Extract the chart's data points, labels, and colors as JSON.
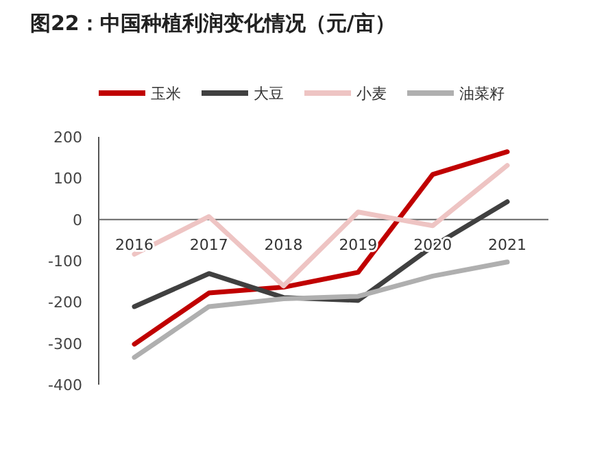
{
  "chart_data": {
    "type": "line",
    "title": "图22：中国种植利润变化情况（元/亩）",
    "categories": [
      "2016",
      "2017",
      "2018",
      "2019",
      "2020",
      "2021"
    ],
    "series": [
      {
        "name": "玉米",
        "color": "#c00000",
        "values": [
          -302,
          -178,
          -164,
          -128,
          109,
          164
        ]
      },
      {
        "name": "大豆",
        "color": "#404040",
        "values": [
          -211,
          -131,
          -189,
          -196,
          -65,
          43
        ]
      },
      {
        "name": "小麦",
        "color": "#eec4c3",
        "values": [
          -84,
          7,
          -161,
          18,
          -15,
          131
        ]
      },
      {
        "name": "油菜籽",
        "color": "#afafaf",
        "values": [
          -334,
          -211,
          -192,
          -186,
          -137,
          -103
        ]
      }
    ],
    "ylim": [
      -400,
      200
    ],
    "yticks": [
      -400,
      -300,
      -200,
      -100,
      0,
      100,
      200
    ],
    "legend": "top",
    "grid": false,
    "marker": "none",
    "line_style": "solid"
  }
}
